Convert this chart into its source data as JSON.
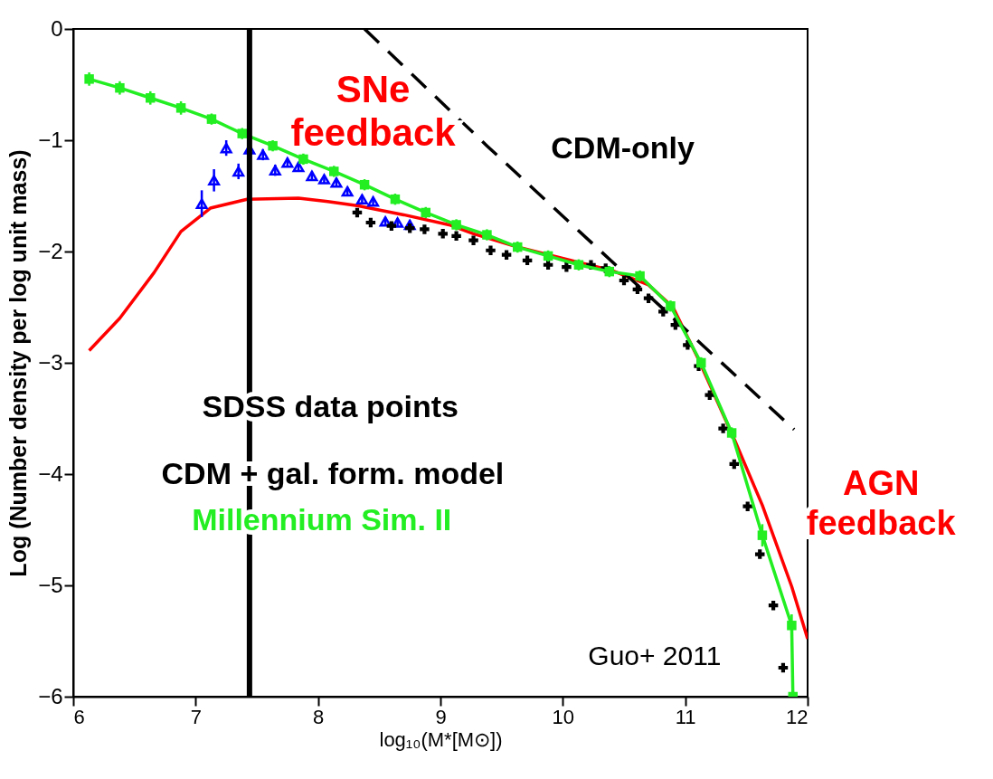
{
  "chart_data": {
    "type": "line",
    "xlabel": "log₁₀(M*[M⊙])",
    "ylabel": "Log (Number density per log unit mass)",
    "xlim": [
      6,
      12
    ],
    "ylim": [
      -6,
      0
    ],
    "xticks": [
      6,
      7,
      8,
      9,
      10,
      11,
      12
    ],
    "yticks": [
      -6,
      -5,
      -4,
      -3,
      -2,
      -1,
      0
    ],
    "grid": false,
    "ref_lines": [
      {
        "axis": "x",
        "value": 7.44,
        "color": "#000000"
      }
    ],
    "annotations": [
      "SNe\nfeedback",
      "CDM-only",
      "SDSS data points",
      "CDM + gal. form. model",
      "Millennium Sim. II",
      "AGN\nfeedback",
      "Guo+ 2011"
    ],
    "series": [
      {
        "type": "line",
        "color": "#ff0000",
        "marker": "none",
        "line_style": "solid",
        "x": [
          6.13,
          6.38,
          6.66,
          6.88,
          7.12,
          7.42,
          7.84,
          8.08,
          8.33,
          8.7,
          9.07,
          9.27,
          9.6,
          10.1,
          10.4,
          10.7,
          10.9,
          11.1,
          11.41,
          11.63,
          11.87,
          12.0
        ],
        "values": [
          -2.89,
          -2.6,
          -2.19,
          -1.82,
          -1.61,
          -1.53,
          -1.52,
          -1.55,
          -1.59,
          -1.67,
          -1.76,
          -1.84,
          -1.95,
          -2.09,
          -2.17,
          -2.3,
          -2.5,
          -2.95,
          -3.71,
          -4.28,
          -5.01,
          -5.48
        ]
      },
      {
        "type": "line",
        "color": "#000000",
        "marker": "none",
        "line_style": "dashed",
        "x": [
          8.38,
          9.38,
          10.45,
          11.89
        ],
        "values": [
          0,
          -1.05,
          -2.14,
          -3.6
        ]
      },
      {
        "type": "scatter",
        "color": "#0000ff",
        "marker": "triangle",
        "x": [
          7.05,
          7.15,
          7.25,
          7.35,
          7.44,
          7.55,
          7.65,
          7.75,
          7.84,
          7.95,
          8.05,
          8.15,
          8.24,
          8.36,
          8.45,
          8.55,
          8.65,
          8.75
        ],
        "values": [
          -1.57,
          -1.36,
          -1.07,
          -1.28,
          -1.08,
          -1.13,
          -1.27,
          -1.2,
          -1.24,
          -1.32,
          -1.35,
          -1.38,
          -1.46,
          -1.53,
          -1.55,
          -1.73,
          -1.74,
          -1.76
        ],
        "errors": [
          0.12,
          0.1,
          0.07,
          0.07,
          null,
          0.05,
          0.05,
          0.04,
          0.04,
          0.04,
          0.04,
          0.04,
          0.04,
          0.04,
          0.04,
          0.04,
          0.04,
          0.04
        ]
      },
      {
        "type": "scatter",
        "color": "#000000",
        "marker": "cross",
        "x": [
          8.32,
          8.43,
          8.6,
          8.75,
          8.87,
          9.02,
          9.13,
          9.27,
          9.41,
          9.54,
          9.71,
          9.88,
          10.03,
          10.23,
          10.35,
          10.5,
          10.61,
          10.7,
          10.82,
          10.92,
          11.02,
          11.11,
          11.2,
          11.31,
          11.4,
          11.51,
          11.61,
          11.72,
          11.8
        ],
        "values": [
          -1.65,
          -1.74,
          -1.77,
          -1.79,
          -1.8,
          -1.84,
          -1.86,
          -1.9,
          -1.99,
          -2.03,
          -2.08,
          -2.12,
          -2.14,
          -2.12,
          -2.15,
          -2.26,
          -2.34,
          -2.42,
          -2.54,
          -2.66,
          -2.84,
          -3.03,
          -3.29,
          -3.59,
          -3.91,
          -4.29,
          -4.72,
          -5.18,
          -5.74
        ]
      },
      {
        "type": "line",
        "color": "#22ee22",
        "marker": "square",
        "line_style": "solid",
        "x": [
          6.13,
          6.38,
          6.63,
          6.88,
          7.13,
          7.38,
          7.63,
          7.88,
          8.13,
          8.38,
          8.63,
          8.88,
          9.13,
          9.38,
          9.63,
          9.88,
          10.13,
          10.38,
          10.63,
          10.88,
          11.13,
          11.38,
          11.63,
          11.87,
          11.88
        ],
        "values": [
          -0.45,
          -0.53,
          -0.62,
          -0.71,
          -0.81,
          -0.94,
          -1.05,
          -1.17,
          -1.28,
          -1.4,
          -1.53,
          -1.65,
          -1.76,
          -1.85,
          -1.96,
          -2.04,
          -2.12,
          -2.18,
          -2.22,
          -2.49,
          -3.0,
          -3.63,
          -4.55,
          -5.36,
          -6.0
        ],
        "errors": [
          0.06,
          0.06,
          0.06,
          0.06,
          0.05,
          0.05,
          0.05,
          0.05,
          0.05,
          0.05,
          0.05,
          0.05,
          0.05,
          0.05,
          0.05,
          0.05,
          0.05,
          0.05,
          0.05,
          0.05,
          0.05,
          0.05,
          0.1,
          0.1,
          null
        ]
      }
    ]
  }
}
